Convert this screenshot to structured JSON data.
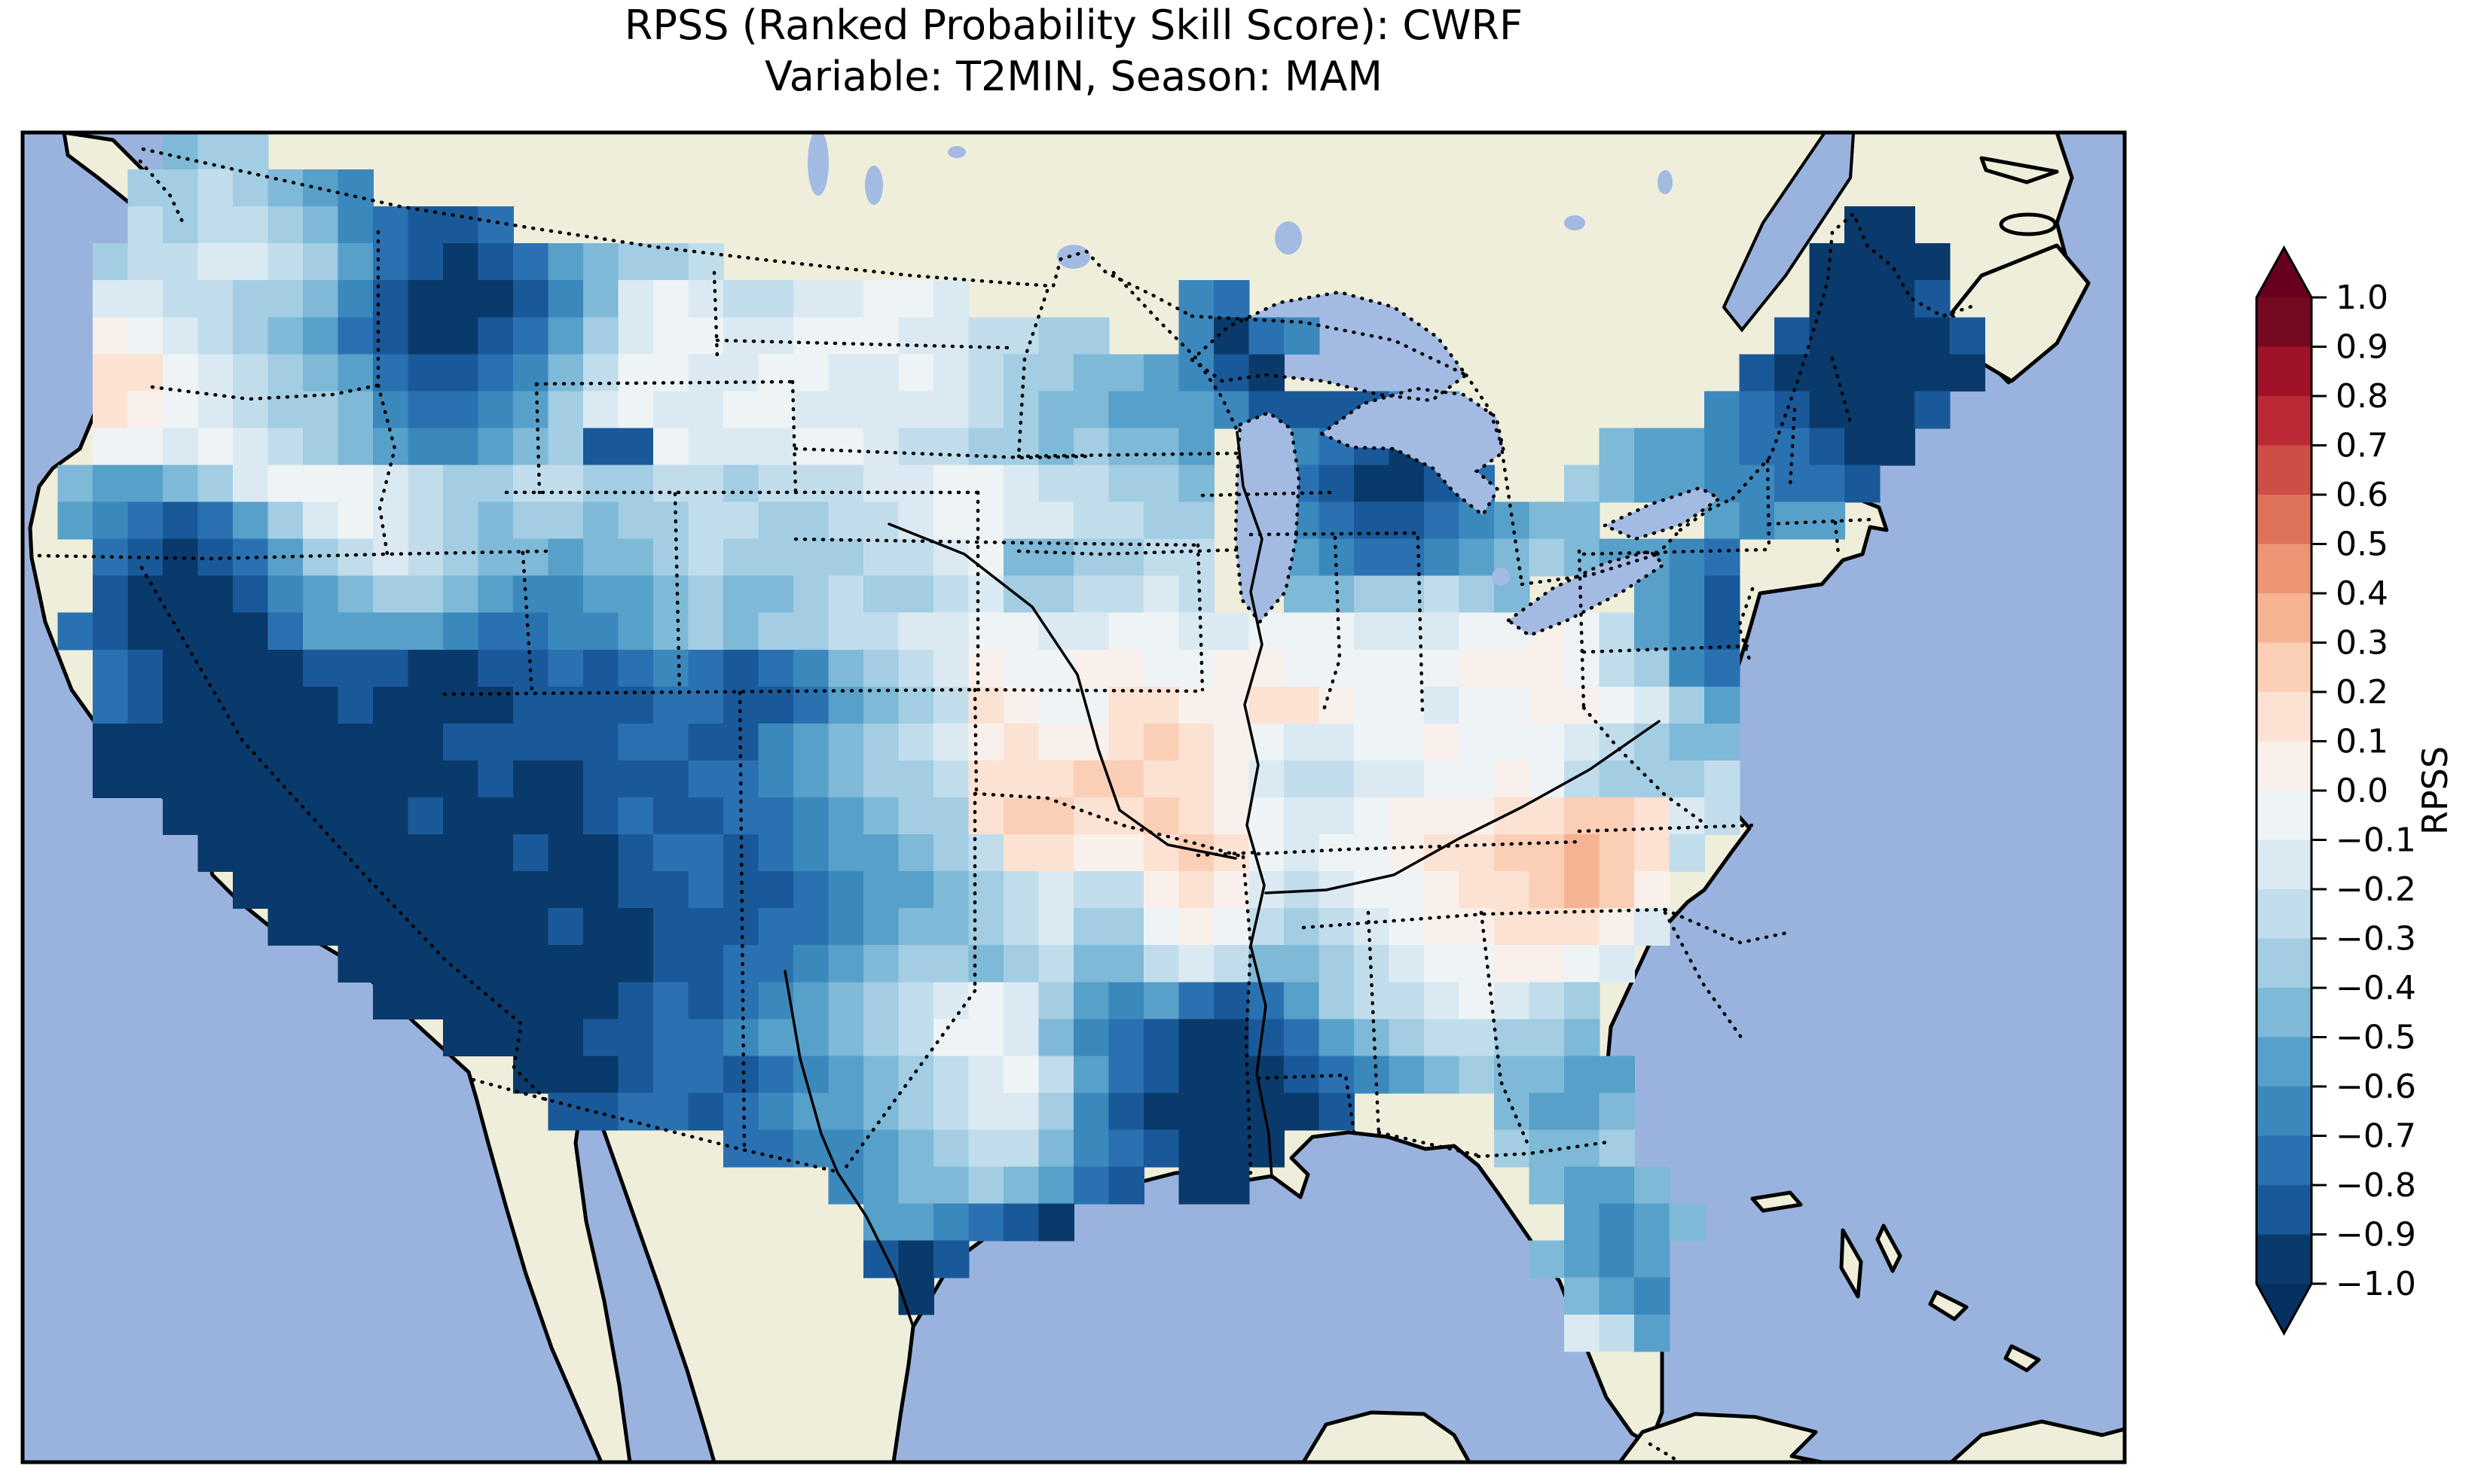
{
  "title": {
    "line1": "RPSS (Ranked Probability Skill Score): CWRF",
    "line2": "Variable: T2MIN, Season: MAM"
  },
  "colorbar": {
    "label": "RPSS",
    "ticks": [
      "1.0",
      "0.9",
      "0.8",
      "0.7",
      "0.6",
      "0.5",
      "0.4",
      "0.3",
      "0.2",
      "0.1",
      "0.0",
      "−0.1",
      "−0.2",
      "−0.3",
      "−0.4",
      "−0.5",
      "−0.6",
      "−0.7",
      "−0.8",
      "−0.9",
      "−1.0"
    ],
    "tick_values": [
      1.0,
      0.9,
      0.8,
      0.7,
      0.6,
      0.5,
      0.4,
      0.3,
      0.2,
      0.1,
      0.0,
      -0.1,
      -0.2,
      -0.3,
      -0.4,
      -0.5,
      -0.6,
      -0.7,
      -0.8,
      -0.9,
      -1.0
    ],
    "segment_colors": [
      "#0a3a6b",
      "#1a5999",
      "#2a71b2",
      "#3b88bd",
      "#57a0ca",
      "#7eb9d7",
      "#a2cde3",
      "#c1ddec",
      "#dbeaf2",
      "#eef3f5",
      "#f9f0eb",
      "#fce2d3",
      "#fbceb6",
      "#f6b393",
      "#ed9475",
      "#de715a",
      "#cd4e45",
      "#bb2a34",
      "#9f1228",
      "#730a22"
    ],
    "over_color": "#67001f",
    "under_color": "#053061"
  },
  "map_colors": {
    "ocean": "#99b3de",
    "land": "#eeeedb",
    "lake": "#a3bae3",
    "coastline": "#000000",
    "border": "#000000"
  },
  "chart_data": {
    "type": "heatmap",
    "title": "RPSS (Ranked Probability Skill Score): CWRF — Variable: T2MIN, Season: MAM",
    "metric": "RPSS",
    "model": "CWRF",
    "variable": "T2MIN",
    "season": "MAM",
    "colormap": "RdBu (blue = negative skill, red = positive skill), discrete 0.1 bins, extended arrows at both ends",
    "value_range": [
      -1.0,
      1.0
    ],
    "legend_position": "right vertical colorbar",
    "region": "Continental United States (values masked outside U.S.)",
    "summary": "Mostly negative RPSS (blues): strongest negative (≤ -0.9) over California/Nevada/Arizona/New Mexico, Gulf Coast of Texas/Louisiana, Michigan and the Northeast/Maine. Weakly positive (orange, +0.1 to +0.4) patches over Kansas–Missouri, northern Oklahoma/Arkansas, South Carolina/Georgia, and a small spot on the Oregon coast.",
    "grid": {
      "cols": 60,
      "rows": 36,
      "encoding": "Each character is one cell: '.' = no data; letters map linearly a=-0.95, b=-0.85, c=-0.75, d=-0.65, e=-0.55, f=-0.45, g=-0.35, h=-0.25, i=-0.15, j=-0.05, k=+0.05, l=+0.15, m=+0.25, n=+0.35 (bin centers of 0.1-wide bins)",
      "rows_data": [
        "....fgg.....................................................",
        "...gghgfed..................................................",
        "...hghhgfdcbbc......................................aa......",
        "..ghhiihgecbabcefggh...............................aaaa.....",
        "..iihhggfdbaaabdfijihhiijji......dc................aaab.....",
        "..kjihgfecbaabcegijjiijjjiihhgg..dacd.............baaaab....",
        "..lljihgfecbbcdfhjjiijjiijihggffedba.............baaaaaa....",
        "..lkjihggfdccdegijiijjiiiiihgffeeedbbbbde.......dcbaaab.....",
        "..jjijihgfeddefgbbjiiijjihhggfgffe..dcba.....feedccbaa......",
        ".feefgijjjihgghhgghhghhhiijjihhggf..cbaabc..gfeeddccb.......",
        ".edcbcegijihgfggfgghhgghhijjiihhgg..dcbbcdeff...edee........",
        "..cbabceghihgffeffghgggghhijffgghh..edccdefgfeedc...........",
        "..baaabdefggfeddeefgffghgghigghhih..ffgghgf...edb...........",
        ".cbaaaaceeeedccddefgfgghhiijjiijjiijjjiiijjkjhedb...........",
        "..cbaaaabbbaabbcbcdcbcdfghikjjkkjjkkjjjjjkkkjhgdc...........",
        "..cbaaaaabaaaabbbbccbbcefghlkjjllkkllkjjijjkkjige...........",
        "..aaaaaaaaaabbbbbccbbdefghiklkklmlkjiijjkjjjihgff...........",
        "..aaaaaaaaaaabaabbbccdefgghlllmmllkihhiijjkjhgggh...........",
        "....aaaaaaabaaaabcbbccdefgglmmllmlkjiijkkkllmmlih...........",
        ".....aaaaaaaaabaabccbcdeefghllkklmljijjkllmmnmlh............",
        "......aaaaaaaaaaabbcbbcdeefghihhklkihijjkllmnmk.............",
        ".......aaaaaaaabaabbbccdeffghiggjkjhghijkklllki.............",
        ".........aaaaaaaaabbccdefggfghffhihffghijjkkji..............",
        "..........aaaaaaabcbcdefghijigedecbceghhijihg...............",
        "............aaaabbccdeefghjjifdcbaabcefghhggf...............",
        "..............aaabccbcdefghijhecbaaabcdefgffee..............",
        "...............bbccbcdeefghiigdbaaaaab....feef..............",
        "....................ccddefghhfdcbaaa......gffg..............",
        ".......................deffgfecb.aa........feef.............",
        "........................eedcba..............edef............",
        "........................bab................fede.............",
        ".........................a..................fed.............",
        "............................................ihe.............",
        "............................................................",
        "............................................................",
        "............................................................"
      ]
    }
  }
}
